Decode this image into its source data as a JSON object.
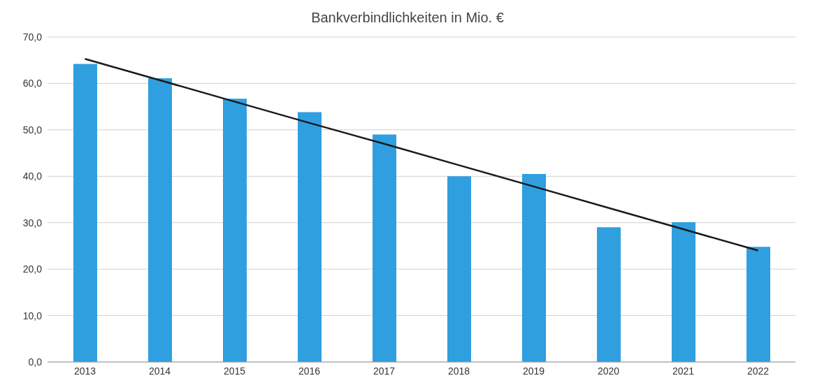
{
  "chart_data": {
    "type": "bar",
    "title": "Bankverbindlichkeiten in Mio. €",
    "categories": [
      "2013",
      "2014",
      "2015",
      "2016",
      "2017",
      "2018",
      "2019",
      "2020",
      "2021",
      "2022"
    ],
    "series": [
      {
        "color": "#2f9fe0",
        "values": [
          64.2,
          61.1,
          56.7,
          53.8,
          49.0,
          40.0,
          40.5,
          29.0,
          30.1,
          24.8
        ]
      },
      {
        "type": "line",
        "color": "#1a1a1a",
        "values": [
          65.3,
          60.7,
          56.1,
          51.5,
          47.0,
          42.4,
          37.8,
          33.2,
          28.6,
          24.0
        ]
      }
    ],
    "ylim": [
      0,
      70
    ],
    "yticks": [
      {
        "value": 0,
        "label": "0,0"
      },
      {
        "value": 10,
        "label": "10,0"
      },
      {
        "value": 20,
        "label": "20,0"
      },
      {
        "value": 30,
        "label": "30,0"
      },
      {
        "value": 40,
        "label": "40,0"
      },
      {
        "value": 50,
        "label": "50,0"
      },
      {
        "value": 60,
        "label": "60,0"
      },
      {
        "value": 70,
        "label": "70,0"
      }
    ],
    "grid": "y",
    "marker": "none",
    "line_style": "solid"
  }
}
